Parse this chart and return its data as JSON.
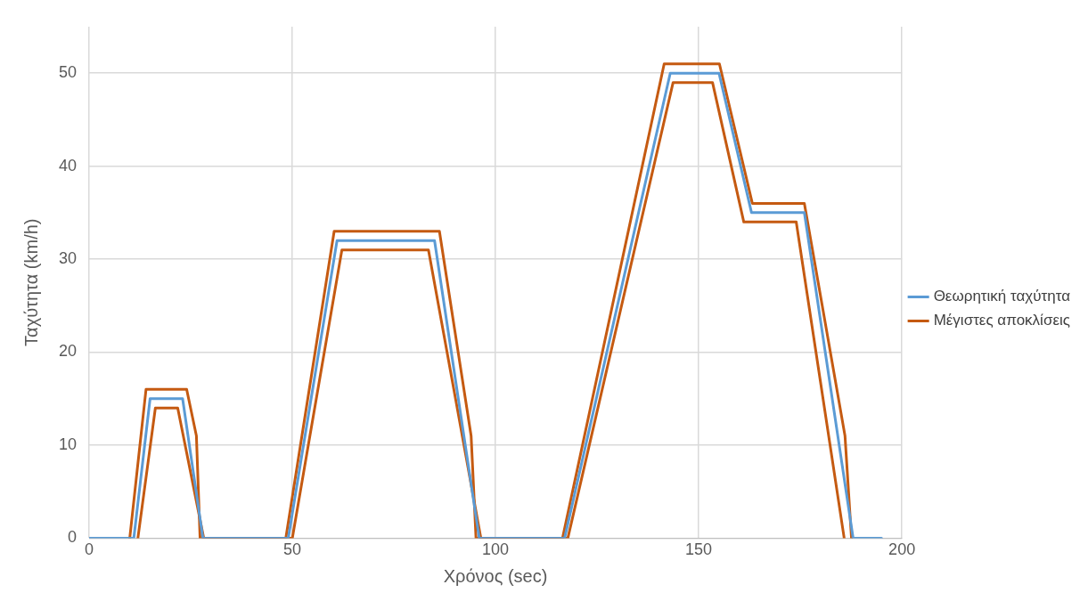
{
  "chart_data": {
    "type": "line",
    "xlabel": "Χρόνος (sec)",
    "ylabel": "Ταχύτητα (km/h)",
    "xlim": [
      0,
      200
    ],
    "xticks": [
      0,
      50,
      100,
      150,
      200
    ],
    "ylim": [
      0,
      55
    ],
    "yticks": [
      0,
      10,
      20,
      30,
      40,
      50
    ],
    "grid": true,
    "legend": "right",
    "marker": "none",
    "line_style": "solid",
    "series": [
      {
        "name": "Θεωρητική ταχύτητα",
        "color": "#5b9bd5",
        "x": [
          0,
          11,
          15,
          23,
          28,
          49,
          61,
          85,
          96,
          117,
          143,
          155,
          163,
          176,
          188,
          195
        ],
        "values": [
          0,
          0,
          15,
          15,
          0,
          0,
          32,
          32,
          0,
          0,
          50,
          50,
          35,
          35,
          0,
          0
        ]
      },
      {
        "name": "Μέγιστες αποκλίσεις",
        "color": "#c55a11",
        "x": [
          10,
          14,
          24,
          26.4,
          27.3,
          48.4,
          60.3,
          86.2,
          94,
          95.2,
          116.5,
          141.5,
          155.1,
          163.2,
          176,
          186,
          187.6
        ],
        "values": [
          0,
          16,
          16,
          11,
          0,
          0,
          33,
          33,
          11,
          0,
          0,
          51,
          51,
          36,
          36,
          11,
          0
        ]
      },
      {
        "color": "#c55a11",
        "x": [
          12,
          16.3,
          21.8,
          28.2,
          50,
          62.2,
          83.5,
          96.4,
          117.8,
          143.7,
          153.4,
          161.1,
          174,
          185.8
        ],
        "values": [
          0,
          14,
          14,
          0,
          0,
          31,
          31,
          0,
          0,
          49,
          49,
          34,
          34,
          0
        ]
      }
    ]
  }
}
